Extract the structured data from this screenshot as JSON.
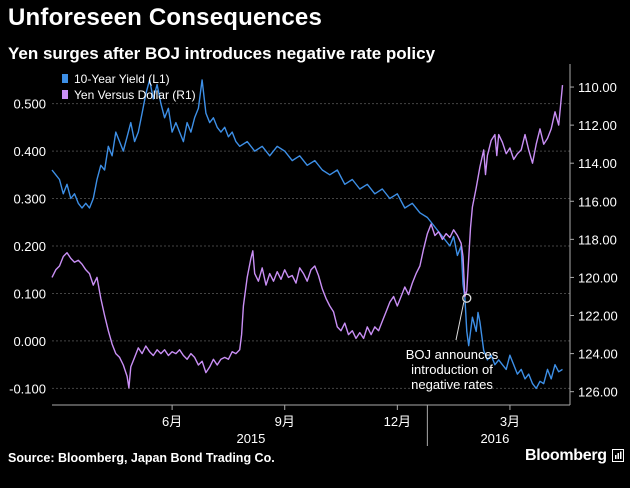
{
  "title": "Unforeseen Consequences",
  "subtitle": "Yen surges after BOJ introduces negative rate policy",
  "source": "Source: Bloomberg, Japan Bond Trading Co.",
  "brand": "Bloomberg",
  "chart_data": {
    "type": "line",
    "left_axis": {
      "label": "10-Year Yield (L1)",
      "ylim": [
        -0.135,
        0.575
      ],
      "ticks": [
        "0.500",
        "0.400",
        "0.300",
        "0.200",
        "0.100",
        "0.000",
        "-0.100"
      ],
      "tick_values": [
        0.5,
        0.4,
        0.3,
        0.2,
        0.1,
        0.0,
        -0.1
      ]
    },
    "right_axis": {
      "label": "Yen Versus Dollar (R1)",
      "ylim": [
        126.7,
        109.0
      ],
      "inverted": true,
      "ticks": [
        "110.00",
        "112.00",
        "114.00",
        "116.00",
        "118.00",
        "120.00",
        "122.00",
        "124.00",
        "126.00"
      ],
      "tick_values": [
        110,
        112,
        114,
        116,
        118,
        120,
        122,
        124,
        126
      ]
    },
    "x_range": [
      0,
      13.8
    ],
    "x_ticks": [
      {
        "label": "6月",
        "pos": 3.2
      },
      {
        "label": "9月",
        "pos": 6.2
      },
      {
        "label": "12月",
        "pos": 9.2
      },
      {
        "label": "3月",
        "pos": 12.2
      }
    ],
    "year_labels": [
      {
        "label": "2015",
        "pos": 5.3
      },
      {
        "label": "2016",
        "pos": 11.8
      }
    ],
    "year_divider": 10.0,
    "series": [
      {
        "name": "10-Year Yield (L1)",
        "color": "#3d8fe6",
        "axis": "left",
        "points": [
          [
            0.0,
            0.36
          ],
          [
            0.1,
            0.35
          ],
          [
            0.2,
            0.34
          ],
          [
            0.3,
            0.31
          ],
          [
            0.4,
            0.33
          ],
          [
            0.5,
            0.3
          ],
          [
            0.6,
            0.31
          ],
          [
            0.7,
            0.29
          ],
          [
            0.8,
            0.28
          ],
          [
            0.9,
            0.29
          ],
          [
            1.0,
            0.28
          ],
          [
            1.1,
            0.3
          ],
          [
            1.2,
            0.34
          ],
          [
            1.3,
            0.37
          ],
          [
            1.4,
            0.36
          ],
          [
            1.5,
            0.41
          ],
          [
            1.6,
            0.39
          ],
          [
            1.7,
            0.44
          ],
          [
            1.8,
            0.42
          ],
          [
            1.9,
            0.4
          ],
          [
            2.0,
            0.43
          ],
          [
            2.1,
            0.46
          ],
          [
            2.2,
            0.42
          ],
          [
            2.3,
            0.44
          ],
          [
            2.4,
            0.48
          ],
          [
            2.5,
            0.52
          ],
          [
            2.6,
            0.55
          ],
          [
            2.7,
            0.51
          ],
          [
            2.8,
            0.54
          ],
          [
            2.9,
            0.5
          ],
          [
            3.0,
            0.47
          ],
          [
            3.1,
            0.49
          ],
          [
            3.2,
            0.44
          ],
          [
            3.3,
            0.46
          ],
          [
            3.4,
            0.44
          ],
          [
            3.5,
            0.42
          ],
          [
            3.6,
            0.46
          ],
          [
            3.7,
            0.44
          ],
          [
            3.8,
            0.47
          ],
          [
            3.9,
            0.49
          ],
          [
            4.0,
            0.55
          ],
          [
            4.1,
            0.48
          ],
          [
            4.2,
            0.46
          ],
          [
            4.3,
            0.47
          ],
          [
            4.4,
            0.45
          ],
          [
            4.5,
            0.44
          ],
          [
            4.6,
            0.45
          ],
          [
            4.7,
            0.43
          ],
          [
            4.8,
            0.44
          ],
          [
            4.9,
            0.42
          ],
          [
            5.0,
            0.41
          ],
          [
            5.2,
            0.42
          ],
          [
            5.4,
            0.4
          ],
          [
            5.6,
            0.41
          ],
          [
            5.8,
            0.39
          ],
          [
            6.0,
            0.41
          ],
          [
            6.2,
            0.4
          ],
          [
            6.4,
            0.38
          ],
          [
            6.6,
            0.39
          ],
          [
            6.8,
            0.37
          ],
          [
            7.0,
            0.38
          ],
          [
            7.2,
            0.36
          ],
          [
            7.4,
            0.35
          ],
          [
            7.6,
            0.36
          ],
          [
            7.8,
            0.33
          ],
          [
            8.0,
            0.34
          ],
          [
            8.2,
            0.32
          ],
          [
            8.4,
            0.33
          ],
          [
            8.6,
            0.31
          ],
          [
            8.8,
            0.32
          ],
          [
            9.0,
            0.3
          ],
          [
            9.2,
            0.31
          ],
          [
            9.4,
            0.28
          ],
          [
            9.6,
            0.29
          ],
          [
            9.8,
            0.27
          ],
          [
            10.0,
            0.26
          ],
          [
            10.2,
            0.24
          ],
          [
            10.4,
            0.22
          ],
          [
            10.6,
            0.2
          ],
          [
            10.7,
            0.22
          ],
          [
            10.8,
            0.18
          ],
          [
            10.9,
            0.2
          ],
          [
            10.95,
            0.12
          ],
          [
            11.0,
            0.09
          ],
          [
            11.05,
            0.02
          ],
          [
            11.1,
            -0.01
          ],
          [
            11.2,
            0.05
          ],
          [
            11.3,
            0.02
          ],
          [
            11.35,
            0.06
          ],
          [
            11.4,
            0.04
          ],
          [
            11.5,
            -0.02
          ],
          [
            11.6,
            -0.04
          ],
          [
            11.7,
            -0.03
          ],
          [
            11.8,
            -0.05
          ],
          [
            11.9,
            -0.04
          ],
          [
            12.0,
            -0.05
          ],
          [
            12.1,
            -0.06
          ],
          [
            12.2,
            -0.03
          ],
          [
            12.3,
            -0.05
          ],
          [
            12.4,
            -0.07
          ],
          [
            12.5,
            -0.06
          ],
          [
            12.6,
            -0.08
          ],
          [
            12.7,
            -0.07
          ],
          [
            12.8,
            -0.09
          ],
          [
            12.9,
            -0.1
          ],
          [
            13.0,
            -0.085
          ],
          [
            13.1,
            -0.09
          ],
          [
            13.2,
            -0.06
          ],
          [
            13.3,
            -0.08
          ],
          [
            13.4,
            -0.05
          ],
          [
            13.5,
            -0.065
          ],
          [
            13.6,
            -0.06
          ]
        ]
      },
      {
        "name": "Yen Versus Dollar (R1)",
        "color": "#c98ff5",
        "axis": "right",
        "points": [
          [
            0.0,
            120.0
          ],
          [
            0.1,
            119.6
          ],
          [
            0.2,
            119.4
          ],
          [
            0.3,
            118.9
          ],
          [
            0.4,
            118.7
          ],
          [
            0.5,
            119.0
          ],
          [
            0.6,
            119.2
          ],
          [
            0.7,
            119.1
          ],
          [
            0.8,
            119.3
          ],
          [
            0.9,
            119.6
          ],
          [
            1.0,
            119.8
          ],
          [
            1.1,
            120.4
          ],
          [
            1.2,
            120.0
          ],
          [
            1.3,
            121.1
          ],
          [
            1.4,
            122.0
          ],
          [
            1.5,
            122.8
          ],
          [
            1.6,
            123.5
          ],
          [
            1.7,
            124.0
          ],
          [
            1.8,
            124.2
          ],
          [
            1.9,
            124.6
          ],
          [
            2.0,
            125.2
          ],
          [
            2.05,
            125.8
          ],
          [
            2.1,
            124.7
          ],
          [
            2.2,
            124.2
          ],
          [
            2.3,
            123.7
          ],
          [
            2.4,
            124.0
          ],
          [
            2.5,
            123.6
          ],
          [
            2.6,
            123.9
          ],
          [
            2.7,
            124.1
          ],
          [
            2.8,
            123.8
          ],
          [
            2.9,
            124.0
          ],
          [
            3.0,
            123.8
          ],
          [
            3.1,
            124.1
          ],
          [
            3.2,
            123.9
          ],
          [
            3.3,
            124.0
          ],
          [
            3.4,
            123.8
          ],
          [
            3.5,
            124.1
          ],
          [
            3.6,
            124.3
          ],
          [
            3.7,
            124.0
          ],
          [
            3.8,
            124.2
          ],
          [
            3.9,
            124.6
          ],
          [
            4.0,
            124.4
          ],
          [
            4.1,
            125.0
          ],
          [
            4.2,
            124.7
          ],
          [
            4.3,
            124.3
          ],
          [
            4.4,
            124.6
          ],
          [
            4.5,
            124.3
          ],
          [
            4.6,
            124.2
          ],
          [
            4.7,
            124.3
          ],
          [
            4.8,
            123.9
          ],
          [
            4.9,
            124.0
          ],
          [
            5.0,
            123.8
          ],
          [
            5.05,
            123.0
          ],
          [
            5.1,
            121.5
          ],
          [
            5.2,
            120.0
          ],
          [
            5.3,
            119.0
          ],
          [
            5.35,
            118.6
          ],
          [
            5.4,
            119.8
          ],
          [
            5.5,
            120.2
          ],
          [
            5.6,
            119.5
          ],
          [
            5.7,
            120.4
          ],
          [
            5.8,
            119.8
          ],
          [
            5.9,
            120.2
          ],
          [
            6.0,
            119.7
          ],
          [
            6.1,
            120.1
          ],
          [
            6.2,
            119.6
          ],
          [
            6.3,
            120.0
          ],
          [
            6.4,
            119.9
          ],
          [
            6.5,
            120.3
          ],
          [
            6.6,
            119.5
          ],
          [
            6.7,
            119.8
          ],
          [
            6.8,
            120.2
          ],
          [
            6.9,
            119.6
          ],
          [
            7.0,
            119.4
          ],
          [
            7.1,
            119.9
          ],
          [
            7.2,
            120.6
          ],
          [
            7.3,
            121.1
          ],
          [
            7.4,
            121.5
          ],
          [
            7.5,
            121.8
          ],
          [
            7.6,
            122.6
          ],
          [
            7.7,
            122.8
          ],
          [
            7.8,
            122.4
          ],
          [
            7.9,
            123.0
          ],
          [
            8.0,
            122.8
          ],
          [
            8.1,
            123.2
          ],
          [
            8.2,
            122.9
          ],
          [
            8.3,
            123.2
          ],
          [
            8.4,
            122.6
          ],
          [
            8.5,
            123.0
          ],
          [
            8.6,
            122.6
          ],
          [
            8.7,
            122.8
          ],
          [
            8.8,
            122.3
          ],
          [
            8.9,
            121.8
          ],
          [
            9.0,
            121.3
          ],
          [
            9.1,
            121.0
          ],
          [
            9.2,
            121.5
          ],
          [
            9.3,
            121.0
          ],
          [
            9.4,
            120.5
          ],
          [
            9.5,
            120.9
          ],
          [
            9.6,
            120.3
          ],
          [
            9.7,
            119.8
          ],
          [
            9.8,
            119.4
          ],
          [
            9.9,
            118.5
          ],
          [
            10.0,
            117.7
          ],
          [
            10.1,
            117.2
          ],
          [
            10.2,
            117.8
          ],
          [
            10.3,
            117.6
          ],
          [
            10.4,
            118.0
          ],
          [
            10.5,
            117.7
          ],
          [
            10.6,
            117.9
          ],
          [
            10.7,
            117.5
          ],
          [
            10.8,
            117.8
          ],
          [
            10.9,
            118.2
          ],
          [
            10.95,
            118.9
          ],
          [
            11.0,
            121.0
          ],
          [
            11.05,
            120.7
          ],
          [
            11.1,
            119.0
          ],
          [
            11.15,
            117.4
          ],
          [
            11.2,
            116.3
          ],
          [
            11.3,
            115.3
          ],
          [
            11.4,
            114.2
          ],
          [
            11.5,
            113.3
          ],
          [
            11.55,
            114.6
          ],
          [
            11.6,
            113.6
          ],
          [
            11.7,
            112.8
          ],
          [
            11.8,
            112.5
          ],
          [
            11.85,
            113.6
          ],
          [
            11.9,
            112.5
          ],
          [
            12.0,
            112.9
          ],
          [
            12.1,
            113.5
          ],
          [
            12.2,
            113.2
          ],
          [
            12.3,
            113.8
          ],
          [
            12.4,
            113.5
          ],
          [
            12.5,
            113.3
          ],
          [
            12.6,
            112.5
          ],
          [
            12.7,
            113.3
          ],
          [
            12.8,
            114.0
          ],
          [
            12.9,
            113.0
          ],
          [
            13.0,
            112.2
          ],
          [
            13.1,
            113.0
          ],
          [
            13.2,
            112.7
          ],
          [
            13.3,
            112.2
          ],
          [
            13.4,
            111.3
          ],
          [
            13.5,
            112.0
          ],
          [
            13.6,
            109.9
          ]
        ]
      }
    ],
    "annotation": {
      "lines": [
        "BOJ announces",
        "introduction of",
        "negative rates"
      ],
      "point": [
        11.05,
        0.09
      ]
    }
  }
}
